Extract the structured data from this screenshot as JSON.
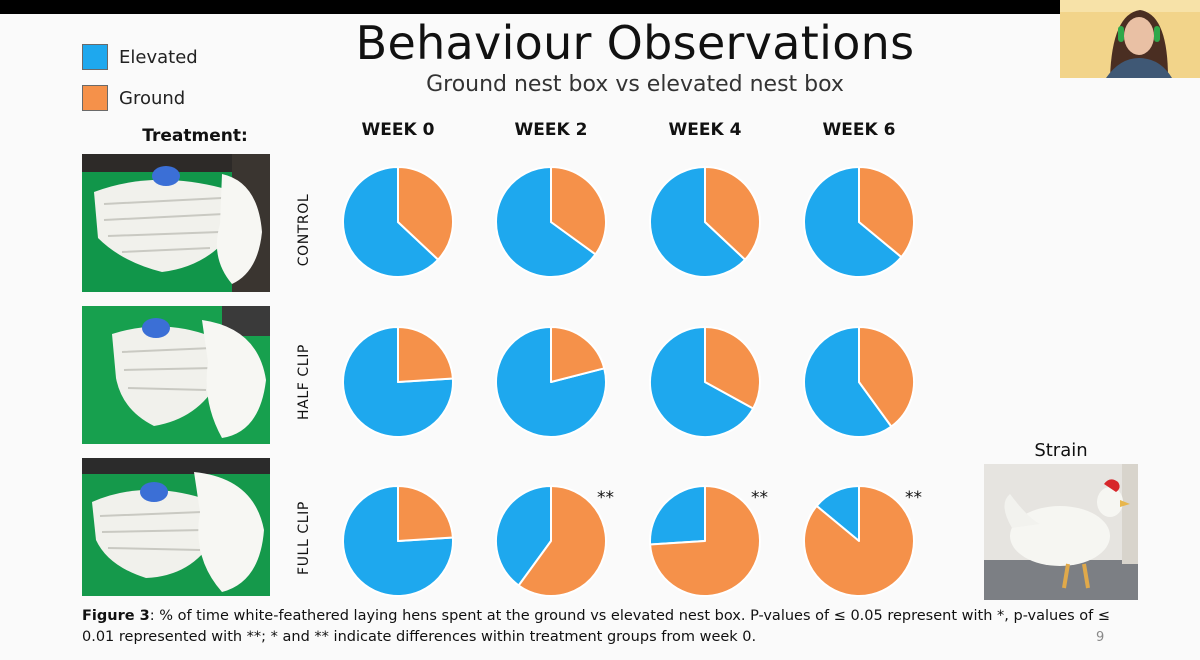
{
  "slide": {
    "title": "Behaviour Observations",
    "subtitle": "Ground nest box vs elevated nest box",
    "treatment_heading": "Treatment:",
    "strain_label": "Strain",
    "page_number": "9"
  },
  "legend": [
    {
      "label": "Elevated",
      "color": "#1ea8ee"
    },
    {
      "label": "Ground",
      "color": "#f5914a"
    }
  ],
  "caption": {
    "bold": "Figure 3",
    "text": ": % of time white-feathered laying hens spent at the ground vs elevated nest box. P-values of ≤ 0.05 represent with *, p-values of ≤ 0.01 represented with **; * and ** indicate differences within treatment groups from week 0."
  },
  "chart_data": {
    "type": "pie",
    "title": "Behaviour Observations",
    "subtitle": "Ground nest box vs elevated nest box",
    "weeks": [
      "WEEK 0",
      "WEEK 2",
      "WEEK 4",
      "WEEK 6"
    ],
    "treatments": [
      "CONTROL",
      "HALF CLIP",
      "FULL CLIP"
    ],
    "series_names": [
      "Elevated",
      "Ground"
    ],
    "colors": {
      "Elevated": "#1ea8ee",
      "Ground": "#f5914a"
    },
    "ground_percent": [
      [
        37,
        35,
        37,
        36
      ],
      [
        24,
        21,
        33,
        40
      ],
      [
        24,
        60,
        74,
        86
      ]
    ],
    "significance": [
      [
        "",
        "",
        "",
        ""
      ],
      [
        "",
        "",
        "",
        ""
      ],
      [
        "",
        "**",
        "**",
        "**"
      ]
    ]
  }
}
